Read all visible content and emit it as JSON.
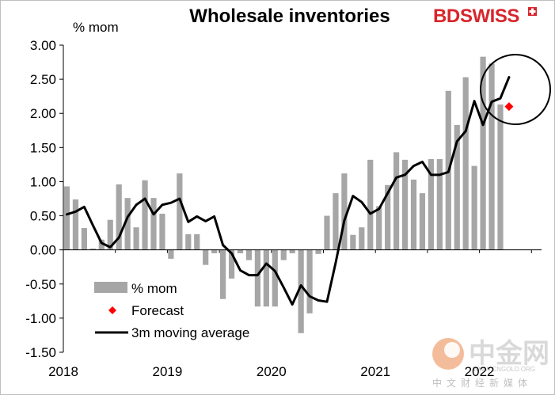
{
  "chart_data": {
    "type": "bar",
    "title": "Wholesale inventories",
    "ylabel": "% mom",
    "ylim": [
      -1.5,
      3.0
    ],
    "yticks": [
      "3.00",
      "2.50",
      "2.00",
      "1.50",
      "1.00",
      "0.50",
      "0.00",
      "-0.50",
      "-1.00",
      "-1.50"
    ],
    "xticks": [
      {
        "label": "2018",
        "index": 0
      },
      {
        "label": "2019",
        "index": 12
      },
      {
        "label": "2020",
        "index": 24
      },
      {
        "label": "2021",
        "index": 36
      },
      {
        "label": "2022",
        "index": 48
      }
    ],
    "series": [
      {
        "name": "% mom",
        "kind": "bar",
        "color": "#a6a6a6",
        "values": [
          0.93,
          0.74,
          0.32,
          0.02,
          0.15,
          0.44,
          0.96,
          0.76,
          0.33,
          1.02,
          0.76,
          0.53,
          -0.13,
          1.12,
          0.23,
          0.23,
          -0.22,
          -0.05,
          -0.72,
          -0.42,
          -0.05,
          -0.15,
          -0.83,
          -0.83,
          -0.83,
          -0.15,
          -0.05,
          -1.22,
          -0.93,
          -0.06,
          0.5,
          0.83,
          1.12,
          0.22,
          0.33,
          1.32,
          0.64,
          0.95,
          1.43,
          1.32,
          1.03,
          0.83,
          1.33,
          1.33,
          2.33,
          1.83,
          2.53,
          1.23,
          2.83,
          2.73,
          2.13
        ]
      },
      {
        "name": "3m moving average",
        "kind": "line",
        "color": "#000000",
        "values": [
          0.52,
          0.56,
          0.63,
          0.36,
          0.1,
          0.04,
          0.18,
          0.48,
          0.66,
          0.75,
          0.52,
          0.66,
          0.69,
          0.75,
          0.41,
          0.49,
          0.42,
          0.49,
          0.07,
          -0.05,
          -0.3,
          -0.37,
          -0.37,
          -0.2,
          -0.31,
          -0.55,
          -0.8,
          -0.52,
          -0.68,
          -0.74,
          -0.76,
          -0.19,
          0.43,
          0.79,
          0.7,
          0.53,
          0.6,
          0.83,
          1.06,
          1.1,
          1.23,
          1.29,
          1.1,
          1.1,
          1.14,
          1.59,
          1.74,
          2.18,
          1.83,
          2.17,
          2.22,
          2.53
        ]
      },
      {
        "name": "Forecast",
        "kind": "point",
        "color": "#ff0000",
        "points": [
          {
            "index": 51,
            "value": 2.1
          }
        ]
      }
    ],
    "legend_position": "bottom-left",
    "grid": false
  },
  "branding": {
    "logo_part1": "BD",
    "logo_part2": "SWISS",
    "watermark_cn": "中金网",
    "watermark_url": "WWW.CNGOLD.ORG",
    "watermark_sub": "中文财经新媒体"
  },
  "colors": {
    "bar": "#a6a6a6",
    "line": "#000000",
    "forecast": "#ff0000",
    "brand": "#d7262c"
  }
}
